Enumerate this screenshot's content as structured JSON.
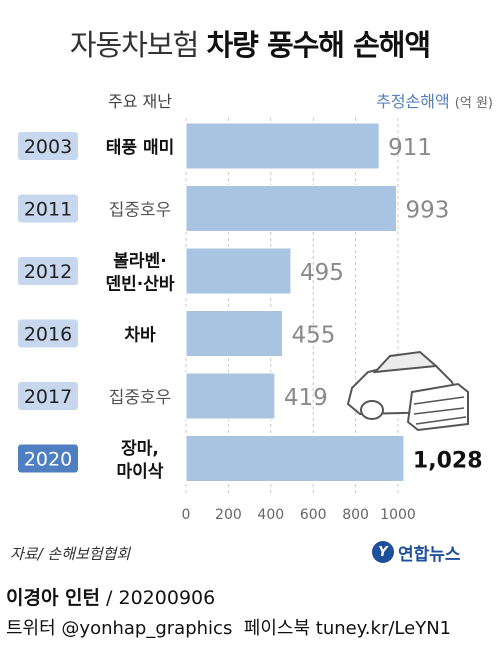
{
  "title": {
    "light": "자동차보험",
    "bold": "차량 풍수해 손해액"
  },
  "headers": {
    "disaster": "주요 재난",
    "loss": "추정손해액",
    "unit": "(억 원)"
  },
  "chart_data": {
    "type": "bar",
    "orientation": "horizontal",
    "categories": [
      "2003",
      "2011",
      "2012",
      "2016",
      "2017",
      "2020"
    ],
    "disasters": [
      [
        "태풍 매미"
      ],
      [
        "집중호우"
      ],
      [
        "볼라벤·",
        "덴빈·산바"
      ],
      [
        "차바"
      ],
      [
        "집중호우"
      ],
      [
        "장마,",
        "마이삭"
      ]
    ],
    "disaster_bold": [
      true,
      false,
      true,
      true,
      false,
      true
    ],
    "values": [
      911,
      993,
      495,
      455,
      419,
      1028
    ],
    "value_labels": [
      "911",
      "993",
      "495",
      "455",
      "419",
      "1,028"
    ],
    "xlim": [
      0,
      1000
    ],
    "xticks": [
      "0",
      "200",
      "400",
      "600",
      "800",
      "1000"
    ],
    "grid": true,
    "unit": "억 원"
  },
  "colors": {
    "bar": "#a9c3e2",
    "year_box": "#c7d8ee",
    "year_box_highlight": "#4f7fc0",
    "header_loss": "#5680bd",
    "grid": "#c8c8c8",
    "value_dim": "#8a8a8a",
    "value_strong": "#111111"
  },
  "source": "자료/ 손해보험협회",
  "logo": {
    "mark": "Y",
    "text": "연합뉴스"
  },
  "credit": {
    "author": "이경아 인턴",
    "sep": " / ",
    "date": "20200906"
  },
  "social": {
    "twitter_label": "트위터",
    "twitter": "@yonhap_graphics",
    "fb_label": "페이스북",
    "fb": "tuney.kr/LeYN1"
  },
  "illustration": {
    "icon": "flooded-car-icon"
  }
}
